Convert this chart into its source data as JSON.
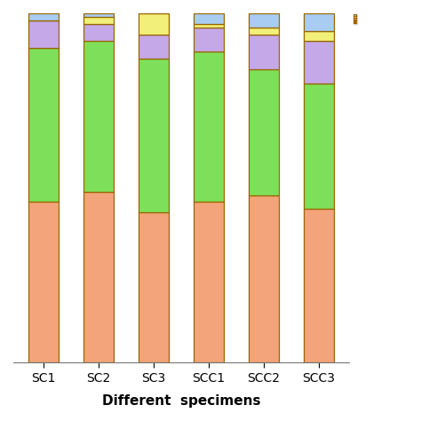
{
  "categories": [
    "SC1",
    "SC2",
    "SC3",
    "SCC1",
    "SCC2",
    "SCC3"
  ],
  "xlabel": "Different  specimens",
  "colors": {
    "salmon": "#F4A47A",
    "green": "#7EE05A",
    "purple": "#C4A8E8",
    "yellow": "#F2F07A",
    "blue": "#A8CCF2"
  },
  "segments": {
    "salmon": [
      46,
      49,
      43,
      46,
      48,
      44
    ],
    "green": [
      44,
      43,
      44,
      43,
      36,
      36
    ],
    "purple": [
      8,
      5,
      7,
      7,
      10,
      12
    ],
    "yellow": [
      0,
      2,
      6,
      1,
      2,
      3
    ],
    "blue": [
      2,
      1,
      0,
      3,
      4,
      5
    ]
  },
  "legend_colors": [
    "#A8CCF2",
    "#F2F07A",
    "#C4A8E8",
    "#7EE05A",
    "#F4A47A"
  ],
  "bar_width": 0.55,
  "edgecolor": "#996600",
  "background_color": "#ffffff",
  "ylim": [
    0,
    100
  ]
}
